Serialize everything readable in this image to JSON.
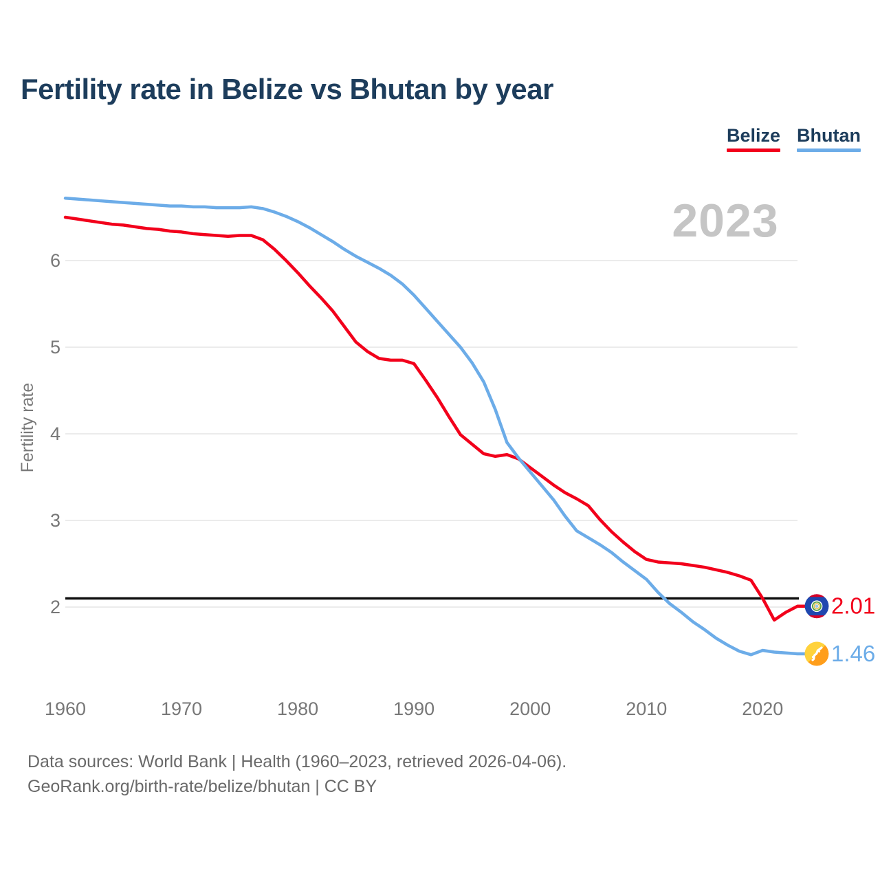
{
  "header": {
    "title": "Fertility rate in Belize vs Bhutan by year"
  },
  "legend": [
    {
      "label": "Belize",
      "color": "#f2001b"
    },
    {
      "label": "Bhutan",
      "color": "#6cace8"
    }
  ],
  "watermark": "2023",
  "footer": {
    "line1": "Data sources: World Bank | Health (1960–2023, retrieved 2026-04-06).",
    "line2": "GeoRank.org/birth-rate/belize/bhutan | CC BY"
  },
  "chart_data": {
    "type": "line",
    "title": "Fertility rate in Belize vs Bhutan by year",
    "xlabel": "",
    "ylabel": "Fertility rate",
    "grid": true,
    "legend_position": "top-right",
    "ylim": [
      1.3,
      6.9
    ],
    "yticks": [
      2,
      3,
      4,
      5,
      6
    ],
    "xticks": [
      1960,
      1970,
      1980,
      1990,
      2000,
      2010,
      2020
    ],
    "reference_line": {
      "value": 2.1,
      "color": "#0d0d0d"
    },
    "x": [
      1960,
      1961,
      1962,
      1963,
      1964,
      1965,
      1966,
      1967,
      1968,
      1969,
      1970,
      1971,
      1972,
      1973,
      1974,
      1975,
      1976,
      1977,
      1978,
      1979,
      1980,
      1981,
      1982,
      1983,
      1984,
      1985,
      1986,
      1987,
      1988,
      1989,
      1990,
      1991,
      1992,
      1993,
      1994,
      1995,
      1996,
      1997,
      1998,
      1999,
      2000,
      2001,
      2002,
      2003,
      2004,
      2005,
      2006,
      2007,
      2008,
      2009,
      2010,
      2011,
      2012,
      2013,
      2014,
      2015,
      2016,
      2017,
      2018,
      2019,
      2020,
      2021,
      2022,
      2023
    ],
    "series": [
      {
        "name": "Belize",
        "color": "#f2001b",
        "end_label": "2.01",
        "flag": "belize",
        "values": [
          6.5,
          6.48,
          6.46,
          6.44,
          6.42,
          6.41,
          6.39,
          6.37,
          6.36,
          6.34,
          6.33,
          6.31,
          6.3,
          6.29,
          6.28,
          6.29,
          6.29,
          6.24,
          6.13,
          6.0,
          5.86,
          5.71,
          5.57,
          5.42,
          5.24,
          5.06,
          4.95,
          4.87,
          4.85,
          4.85,
          4.81,
          4.62,
          4.42,
          4.2,
          3.99,
          3.88,
          3.77,
          3.74,
          3.76,
          3.71,
          3.61,
          3.51,
          3.41,
          3.32,
          3.25,
          3.17,
          3.01,
          2.87,
          2.75,
          2.64,
          2.55,
          2.52,
          2.51,
          2.5,
          2.48,
          2.46,
          2.43,
          2.4,
          2.36,
          2.31,
          2.1,
          1.85,
          1.94,
          2.01
        ]
      },
      {
        "name": "Bhutan",
        "color": "#6cace8",
        "end_label": "1.46",
        "flag": "bhutan",
        "values": [
          6.72,
          6.71,
          6.7,
          6.69,
          6.68,
          6.67,
          6.66,
          6.65,
          6.64,
          6.63,
          6.63,
          6.62,
          6.62,
          6.61,
          6.61,
          6.61,
          6.62,
          6.6,
          6.56,
          6.51,
          6.45,
          6.38,
          6.3,
          6.22,
          6.13,
          6.05,
          5.98,
          5.91,
          5.83,
          5.73,
          5.6,
          5.45,
          5.3,
          5.15,
          5.0,
          4.82,
          4.6,
          4.28,
          3.9,
          3.72,
          3.56,
          3.4,
          3.24,
          3.05,
          2.88,
          2.8,
          2.72,
          2.63,
          2.52,
          2.42,
          2.32,
          2.17,
          2.04,
          1.94,
          1.83,
          1.74,
          1.64,
          1.56,
          1.49,
          1.45,
          1.5,
          1.48,
          1.47,
          1.46
        ]
      }
    ]
  }
}
